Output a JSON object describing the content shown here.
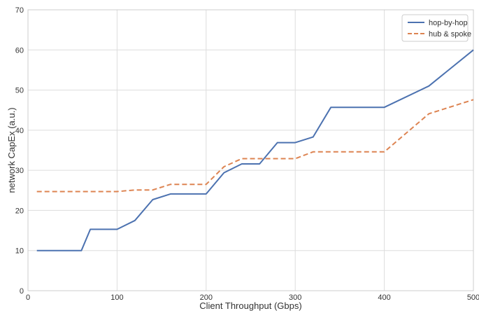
{
  "chart_data": {
    "type": "line",
    "title": "",
    "xlabel": "Client Throughput (Gbps)",
    "ylabel": "network CapEx (a.u.)",
    "xlim": [
      0,
      500
    ],
    "ylim": [
      0,
      70
    ],
    "xticks": [
      0,
      100,
      200,
      300,
      400,
      500
    ],
    "yticks": [
      0,
      10,
      20,
      30,
      40,
      50,
      60,
      70
    ],
    "grid": true,
    "legend_position": "top-right",
    "series": [
      {
        "name": "hop-by-hop",
        "color": "#4c72b0",
        "style": "solid",
        "x": [
          10,
          60,
          70,
          100,
          120,
          140,
          160,
          200,
          220,
          240,
          260,
          280,
          300,
          320,
          340,
          400,
          450,
          500
        ],
        "y": [
          10,
          10,
          15.3,
          15.3,
          17.5,
          22.7,
          24.1,
          24.1,
          29.4,
          31.6,
          31.6,
          36.9,
          36.9,
          38.3,
          45.7,
          45.7,
          51.0,
          60.0
        ]
      },
      {
        "name": "hub & spoke",
        "color": "#dd8452",
        "style": "dashed",
        "x": [
          10,
          100,
          120,
          140,
          160,
          200,
          220,
          240,
          300,
          320,
          400,
          450,
          500
        ],
        "y": [
          24.7,
          24.7,
          25.1,
          25.1,
          26.5,
          26.5,
          30.9,
          32.9,
          32.9,
          34.6,
          34.6,
          44.1,
          47.6
        ]
      }
    ]
  }
}
